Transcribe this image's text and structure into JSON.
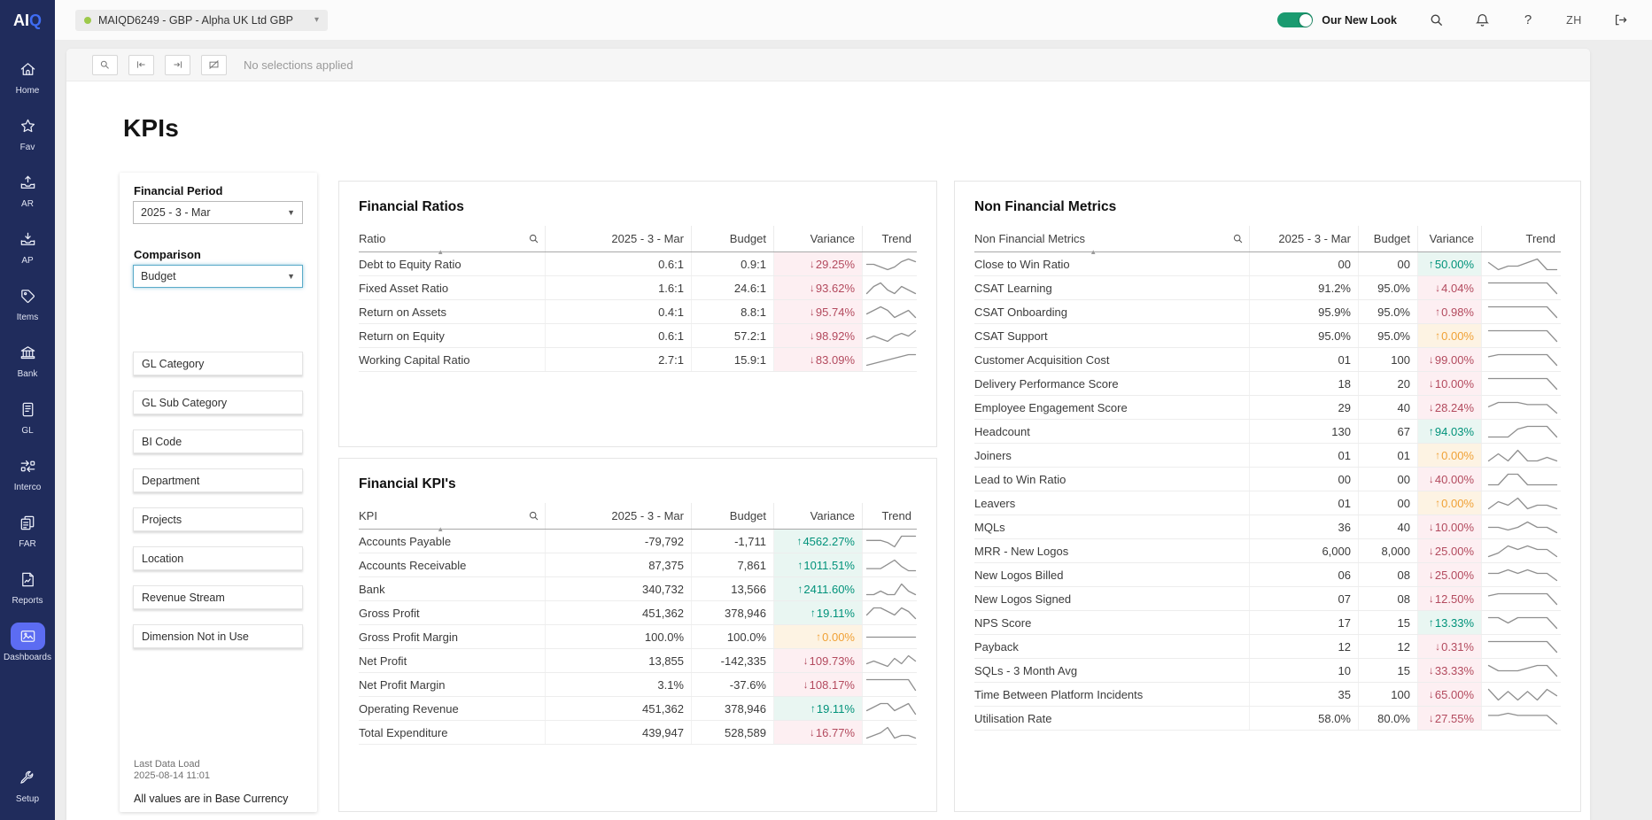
{
  "theme": {
    "sidebar": "#202c5c",
    "accent": "#3f6df4",
    "nav_active": "#5c6cf2",
    "toggle": "#1a9b70",
    "dot": "#9dc94b",
    "focus": "#5aabc9",
    "pos": "#00927a",
    "pos_bg": "#e9f6f2",
    "neg": "#b34a5e",
    "neg_bg": "#fdeff2",
    "zero": "#f0a136",
    "zero_bg": "#fdf3e3",
    "spark": "#8f8f8f"
  },
  "topbar": {
    "logo_primary": "AI",
    "logo_accent": "Q",
    "company_selector": "MAIQD6249 - GBP - Alpha UK Ltd GBP",
    "toggle_label": "Our New Look",
    "user_initials": "ZH"
  },
  "sidebar": {
    "items": [
      {
        "id": "home",
        "label": "Home"
      },
      {
        "id": "fav",
        "label": "Fav"
      },
      {
        "id": "ar",
        "label": "AR"
      },
      {
        "id": "ap",
        "label": "AP"
      },
      {
        "id": "items",
        "label": "Items"
      },
      {
        "id": "bank",
        "label": "Bank"
      },
      {
        "id": "gl",
        "label": "GL"
      },
      {
        "id": "interco",
        "label": "Interco"
      },
      {
        "id": "far",
        "label": "FAR"
      },
      {
        "id": "reports",
        "label": "Reports"
      },
      {
        "id": "dashboards",
        "label": "Dashboards",
        "active": true
      }
    ],
    "bottom_items": [
      {
        "id": "setup",
        "label": "Setup"
      }
    ]
  },
  "toolbar": {
    "status": "No selections applied"
  },
  "page": {
    "title": "KPIs"
  },
  "filters": {
    "financial_period": {
      "label": "Financial Period",
      "value": "2025 - 3 - Mar"
    },
    "comparison": {
      "label": "Comparison",
      "value": "Budget"
    },
    "listboxes": [
      "GL Category",
      "GL Sub Category",
      "BI Code",
      "Department",
      "Projects",
      "Location",
      "Revenue Stream",
      "Dimension Not in Use"
    ],
    "last_data_load_label": "Last Data Load",
    "last_data_load": "2025-08-14 11:01",
    "footnote": "All values are in Base Currency"
  },
  "tables": [
    {
      "id": "financial-ratios",
      "title": "Financial Ratios",
      "spark_w": 58,
      "columns": [
        "Ratio",
        "2025 - 3 - Mar",
        "Budget",
        "Variance",
        "Trend"
      ],
      "rows": [
        {
          "label": "Debt to Equity Ratio",
          "current": "0.6:1",
          "budget": "0.9:1",
          "variance": "29.25%",
          "direction": "down",
          "status": "neg",
          "trend": [
            5,
            5,
            4,
            3,
            4,
            6,
            7,
            6
          ]
        },
        {
          "label": "Fixed Asset Ratio",
          "current": "1.6:1",
          "budget": "24.6:1",
          "variance": "93.62%",
          "direction": "down",
          "status": "neg",
          "trend": [
            4,
            6,
            7,
            5,
            4,
            6,
            5,
            4
          ]
        },
        {
          "label": "Return on Assets",
          "current": "0.4:1",
          "budget": "8.8:1",
          "variance": "95.74%",
          "direction": "down",
          "status": "neg",
          "trend": [
            5,
            6,
            7,
            6,
            4,
            5,
            6,
            4
          ]
        },
        {
          "label": "Return on Equity",
          "current": "0.6:1",
          "budget": "57.2:1",
          "variance": "98.92%",
          "direction": "down",
          "status": "neg",
          "trend": [
            3,
            4,
            3,
            2,
            4,
            5,
            4,
            6
          ]
        },
        {
          "label": "Working Capital Ratio",
          "current": "2.7:1",
          "budget": "15.9:1",
          "variance": "83.09%",
          "direction": "down",
          "status": "neg",
          "trend": [
            1,
            2,
            3,
            4,
            5,
            6,
            7,
            7
          ]
        }
      ]
    },
    {
      "id": "financial-kpis",
      "title": "Financial KPI's",
      "spark_w": 58,
      "columns": [
        "KPI",
        "2025 - 3 - Mar",
        "Budget",
        "Variance",
        "Trend"
      ],
      "rows": [
        {
          "label": "Accounts Payable",
          "current": "-79,792",
          "budget": "-1,711",
          "variance": "4562.27%",
          "direction": "up",
          "status": "pos",
          "trend": [
            5,
            5,
            5,
            4,
            2,
            7,
            7,
            7
          ]
        },
        {
          "label": "Accounts Receivable",
          "current": "87,375",
          "budget": "7,861",
          "variance": "1011.51%",
          "direction": "up",
          "status": "pos",
          "trend": [
            3,
            3,
            3,
            5,
            7,
            4,
            2,
            2
          ]
        },
        {
          "label": "Bank",
          "current": "340,732",
          "budget": "13,566",
          "variance": "2411.60%",
          "direction": "up",
          "status": "pos",
          "trend": [
            4,
            4,
            5,
            4,
            4,
            7,
            5,
            4
          ]
        },
        {
          "label": "Gross Profit",
          "current": "451,362",
          "budget": "378,946",
          "variance": "19.11%",
          "direction": "up",
          "status": "pos",
          "trend": [
            4,
            6,
            6,
            5,
            4,
            6,
            5,
            3
          ]
        },
        {
          "label": "Gross Profit Margin",
          "current": "100.0%",
          "budget": "100.0%",
          "variance": "0.00%",
          "direction": "up",
          "status": "zero",
          "trend": [
            5,
            5,
            5,
            5,
            5,
            5,
            5,
            5
          ]
        },
        {
          "label": "Net Profit",
          "current": "13,855",
          "budget": "-142,335",
          "variance": "109.73%",
          "direction": "down",
          "status": "neg",
          "trend": [
            4,
            5,
            4,
            3,
            6,
            4,
            7,
            5
          ]
        },
        {
          "label": "Net Profit Margin",
          "current": "3.1%",
          "budget": "-37.6%",
          "variance": "108.17%",
          "direction": "down",
          "status": "neg",
          "trend": [
            6,
            6,
            6,
            6,
            6,
            6,
            6,
            5
          ]
        },
        {
          "label": "Operating Revenue",
          "current": "451,362",
          "budget": "378,946",
          "variance": "19.11%",
          "direction": "up",
          "status": "pos",
          "trend": [
            4,
            5,
            6,
            6,
            4,
            5,
            6,
            3
          ]
        },
        {
          "label": "Total Expenditure",
          "current": "439,947",
          "budget": "528,589",
          "variance": "16.77%",
          "direction": "down",
          "status": "neg",
          "trend": [
            3,
            4,
            5,
            7,
            3,
            4,
            4,
            3
          ]
        }
      ]
    },
    {
      "id": "non-financial-metrics",
      "title": "Non Financial Metrics",
      "spark_w": 80,
      "columns": [
        "Non Financial Metrics",
        "2025 - 3 - Mar",
        "Budget",
        "Variance",
        "Trend"
      ],
      "rows": [
        {
          "label": "Close to Win Ratio",
          "current": "00",
          "budget": "00",
          "variance": "50.00%",
          "direction": "up",
          "status": "pos",
          "trend": [
            6,
            4,
            5,
            5,
            6,
            7,
            4,
            4
          ]
        },
        {
          "label": "CSAT Learning",
          "current": "91.2%",
          "budget": "95.0%",
          "variance": "4.04%",
          "direction": "down",
          "status": "neg",
          "trend": [
            7,
            7,
            7,
            7,
            7,
            7,
            7,
            2
          ]
        },
        {
          "label": "CSAT Onboarding",
          "current": "95.9%",
          "budget": "95.0%",
          "variance": "0.98%",
          "direction": "up",
          "status": "neg",
          "trend": [
            7,
            7,
            7,
            7,
            7,
            7,
            7,
            2
          ]
        },
        {
          "label": "CSAT Support",
          "current": "95.0%",
          "budget": "95.0%",
          "variance": "0.00%",
          "direction": "up",
          "status": "zero",
          "trend": [
            7,
            7,
            7,
            7,
            7,
            7,
            7,
            2
          ]
        },
        {
          "label": "Customer Acquisition Cost",
          "current": "01",
          "budget": "100",
          "variance": "99.00%",
          "direction": "down",
          "status": "neg",
          "trend": [
            6,
            7,
            7,
            7,
            7,
            7,
            7,
            2
          ]
        },
        {
          "label": "Delivery Performance Score",
          "current": "18",
          "budget": "20",
          "variance": "10.00%",
          "direction": "down",
          "status": "neg",
          "trend": [
            7,
            7,
            7,
            7,
            7,
            7,
            7,
            2
          ]
        },
        {
          "label": "Employee Engagement Score",
          "current": "29",
          "budget": "40",
          "variance": "28.24%",
          "direction": "down",
          "status": "neg",
          "trend": [
            4,
            6,
            6,
            6,
            5,
            5,
            5,
            1
          ]
        },
        {
          "label": "Headcount",
          "current": "130",
          "budget": "67",
          "variance": "94.03%",
          "direction": "up",
          "status": "pos",
          "trend": [
            3,
            3,
            3,
            6,
            7,
            7,
            7,
            3
          ]
        },
        {
          "label": "Joiners",
          "current": "01",
          "budget": "01",
          "variance": "0.00%",
          "direction": "up",
          "status": "zero",
          "trend": [
            4,
            6,
            4,
            7,
            4,
            4,
            5,
            4
          ]
        },
        {
          "label": "Lead to Win Ratio",
          "current": "00",
          "budget": "00",
          "variance": "40.00%",
          "direction": "down",
          "status": "neg",
          "trend": [
            3,
            3,
            6,
            6,
            3,
            3,
            3,
            3
          ]
        },
        {
          "label": "Leavers",
          "current": "01",
          "budget": "00",
          "variance": "0.00%",
          "direction": "up",
          "status": "zero",
          "trend": [
            4,
            6,
            5,
            7,
            4,
            5,
            5,
            4
          ]
        },
        {
          "label": "MQLs",
          "current": "36",
          "budget": "40",
          "variance": "10.00%",
          "direction": "down",
          "status": "neg",
          "trend": [
            5,
            5,
            4,
            5,
            7,
            5,
            5,
            3
          ]
        },
        {
          "label": "MRR - New Logos",
          "current": "6,000",
          "budget": "8,000",
          "variance": "25.00%",
          "direction": "down",
          "status": "neg",
          "trend": [
            3,
            4,
            6,
            5,
            6,
            5,
            5,
            3
          ]
        },
        {
          "label": "New Logos Billed",
          "current": "06",
          "budget": "08",
          "variance": "25.00%",
          "direction": "down",
          "status": "neg",
          "trend": [
            5,
            5,
            6,
            5,
            6,
            5,
            5,
            3
          ]
        },
        {
          "label": "New Logos Signed",
          "current": "07",
          "budget": "08",
          "variance": "12.50%",
          "direction": "down",
          "status": "neg",
          "trend": [
            6,
            7,
            7,
            7,
            7,
            7,
            7,
            2
          ]
        },
        {
          "label": "NPS Score",
          "current": "17",
          "budget": "15",
          "variance": "13.33%",
          "direction": "up",
          "status": "pos",
          "trend": [
            6,
            6,
            4,
            6,
            6,
            6,
            6,
            2
          ]
        },
        {
          "label": "Payback",
          "current": "12",
          "budget": "12",
          "variance": "0.31%",
          "direction": "down",
          "status": "neg",
          "trend": [
            6,
            6,
            6,
            6,
            6,
            6,
            6,
            2
          ]
        },
        {
          "label": "SQLs - 3 Month Avg",
          "current": "10",
          "budget": "15",
          "variance": "33.33%",
          "direction": "down",
          "status": "neg",
          "trend": [
            6,
            4,
            4,
            4,
            5,
            6,
            6,
            2
          ]
        },
        {
          "label": "Time Between Platform Incidents",
          "current": "35",
          "budget": "100",
          "variance": "65.00%",
          "direction": "down",
          "status": "neg",
          "trend": [
            7,
            2,
            6,
            2,
            6,
            2,
            7,
            4
          ]
        },
        {
          "label": "Utilisation Rate",
          "current": "58.0%",
          "budget": "80.0%",
          "variance": "27.55%",
          "direction": "down",
          "status": "neg",
          "trend": [
            6,
            6,
            7,
            6,
            6,
            6,
            6,
            2
          ]
        }
      ]
    }
  ]
}
